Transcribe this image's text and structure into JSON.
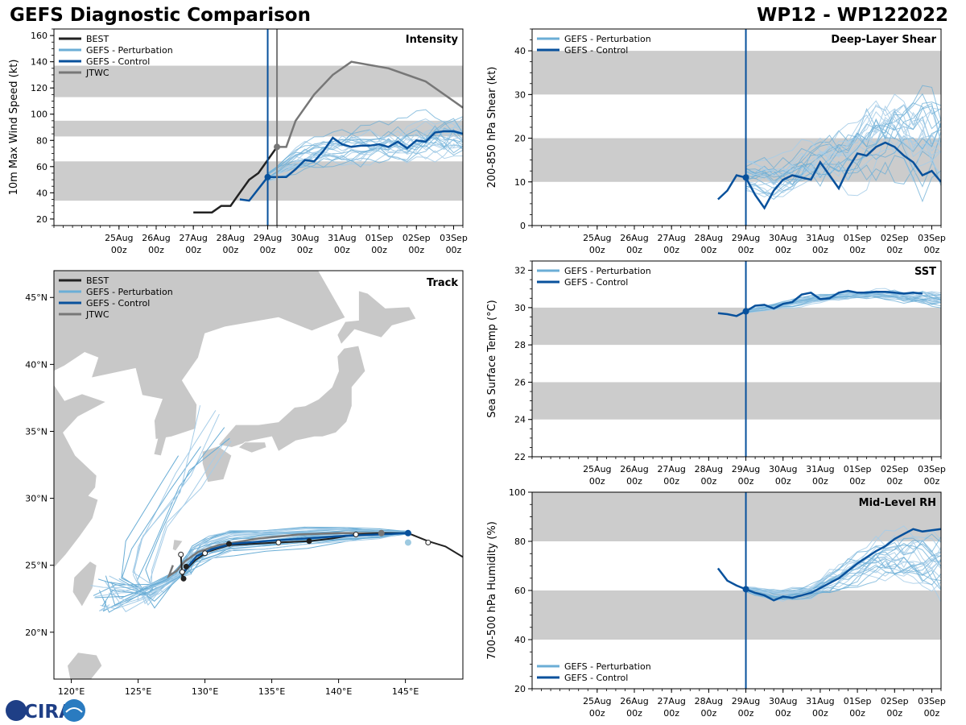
{
  "header": {
    "title": "GEFS Diagnostic Comparison",
    "storm": "WP12 - WP122022"
  },
  "colors": {
    "best": "#222222",
    "perturbation": "#6baed6",
    "control": "#08519c",
    "jtwc": "#777777",
    "band": "#cccccc",
    "land": "#c8c8c8",
    "init_line": "#08519c"
  },
  "legend_labels": {
    "best": "BEST",
    "perturbation": "GEFS - Perturbation",
    "control": "GEFS - Control",
    "jtwc": "JTWC"
  },
  "logo_text": "CIRA",
  "chart_data": [
    {
      "id": "intensity",
      "type": "line",
      "title": "Intensity",
      "ylabel": "10m Max Wind Speed (kt)",
      "ylim": [
        15,
        165
      ],
      "yticks": [
        20,
        40,
        60,
        80,
        100,
        120,
        140,
        160
      ],
      "xlim": [
        -1.75,
        9.25
      ],
      "xtick_labels": [
        [
          "25Aug",
          "00z"
        ],
        [
          "26Aug",
          "00z"
        ],
        [
          "27Aug",
          "00z"
        ],
        [
          "28Aug",
          "00z"
        ],
        [
          "29Aug",
          "00z"
        ],
        [
          "30Aug",
          "00z"
        ],
        [
          "31Aug",
          "00z"
        ],
        [
          "01Sep",
          "00z"
        ],
        [
          "02Sep",
          "00z"
        ],
        [
          "03Sep",
          "00z"
        ]
      ],
      "bands": [
        [
          34,
          64
        ],
        [
          83,
          95
        ],
        [
          113,
          137
        ]
      ],
      "init_time": 4.0,
      "jtwc_init": 4.25,
      "best": {
        "x": [
          2.0,
          2.25,
          2.5,
          2.75,
          3.0,
          3.25,
          3.5,
          3.75,
          4.0,
          4.25
        ],
        "y": [
          25,
          25,
          25,
          30,
          30,
          40,
          50,
          55,
          65,
          75
        ]
      },
      "jtwc": {
        "x": [
          4.25,
          4.5,
          4.75,
          5.25,
          5.75,
          6.25,
          7.25,
          8.25,
          9.0,
          9.25
        ],
        "y": [
          75,
          75,
          95,
          115,
          130,
          140,
          135,
          125,
          110,
          105
        ]
      },
      "control": {
        "x": [
          3.25,
          3.5,
          4.0,
          4.25,
          4.5,
          4.75,
          5.0,
          5.25,
          5.5,
          5.75,
          6.0,
          6.25,
          6.5,
          6.75,
          7.0,
          7.25,
          7.5,
          7.75,
          8.0,
          8.25,
          8.5,
          8.75,
          9.0,
          9.25
        ],
        "y": [
          35,
          34,
          52,
          52,
          52,
          58,
          65,
          64,
          72,
          82,
          77,
          75,
          76,
          76,
          77,
          75,
          79,
          74,
          80,
          79,
          86,
          87,
          87,
          85
        ]
      },
      "perturbation_count": 24,
      "perturbation_start": 4.0,
      "perturbation_end": 9.25,
      "perturbation_center": [
        52,
        66,
        72,
        76,
        78,
        80,
        82
      ],
      "perturbation_spread": [
        4,
        12,
        16,
        20,
        22,
        24,
        26
      ]
    },
    {
      "id": "shear",
      "type": "line",
      "title": "Deep-Layer Shear",
      "ylabel": "200-850 hPa Shear (kt)",
      "ylim": [
        0,
        45
      ],
      "yticks": [
        0,
        10,
        20,
        30,
        40
      ],
      "xlim": [
        -1.75,
        9.25
      ],
      "xtick_labels": [
        [
          "25Aug",
          "00z"
        ],
        [
          "26Aug",
          "00z"
        ],
        [
          "27Aug",
          "00z"
        ],
        [
          "28Aug",
          "00z"
        ],
        [
          "29Aug",
          "00z"
        ],
        [
          "30Aug",
          "00z"
        ],
        [
          "31Aug",
          "00z"
        ],
        [
          "01Sep",
          "00z"
        ],
        [
          "02Sep",
          "00z"
        ],
        [
          "03Sep",
          "00z"
        ]
      ],
      "bands": [
        [
          10,
          20
        ],
        [
          30,
          40
        ]
      ],
      "init_time": 4.0,
      "control": {
        "x": [
          3.25,
          3.5,
          3.75,
          4.0,
          4.25,
          4.5,
          4.75,
          5.0,
          5.25,
          5.5,
          5.75,
          6.0,
          6.25,
          6.5,
          6.75,
          7.0,
          7.25,
          7.5,
          7.75,
          8.0,
          8.25,
          8.5,
          8.75,
          9.0,
          9.25
        ],
        "y": [
          6,
          8,
          11.5,
          11,
          7,
          4,
          8,
          10.5,
          11.5,
          11,
          10.5,
          14.5,
          11.5,
          8.5,
          13,
          16.5,
          16,
          18,
          19,
          18,
          16,
          14.5,
          11.5,
          12.5,
          10
        ]
      },
      "perturbation_count": 24,
      "perturbation_start": 4.0,
      "perturbation_end": 9.25,
      "perturbation_center": [
        11,
        10,
        14,
        16,
        20,
        22,
        20
      ],
      "perturbation_spread": [
        4,
        6,
        8,
        10,
        14,
        18,
        20
      ]
    },
    {
      "id": "sst",
      "type": "line",
      "title": "SST",
      "ylabel": "Sea Surface Temp (°C)",
      "ylim": [
        22,
        32.5
      ],
      "yticks": [
        22,
        24,
        26,
        28,
        30,
        32
      ],
      "xlim": [
        -1.75,
        9.25
      ],
      "xtick_labels": [
        [
          "25Aug",
          "00z"
        ],
        [
          "26Aug",
          "00z"
        ],
        [
          "27Aug",
          "00z"
        ],
        [
          "28Aug",
          "00z"
        ],
        [
          "29Aug",
          "00z"
        ],
        [
          "30Aug",
          "00z"
        ],
        [
          "31Aug",
          "00z"
        ],
        [
          "01Sep",
          "00z"
        ],
        [
          "02Sep",
          "00z"
        ],
        [
          "03Sep",
          "00z"
        ]
      ],
      "bands": [
        [
          24,
          26
        ],
        [
          28,
          30
        ]
      ],
      "init_time": 4.0,
      "control": {
        "x": [
          3.25,
          3.5,
          3.75,
          4.0,
          4.25,
          4.5,
          4.75,
          5.0,
          5.25,
          5.5,
          5.75,
          6.0,
          6.25,
          6.5,
          6.75,
          7.0,
          7.25,
          7.5,
          7.75,
          8.0,
          8.25,
          8.5,
          8.75
        ],
        "y": [
          29.7,
          29.65,
          29.55,
          29.8,
          30.1,
          30.15,
          29.95,
          30.2,
          30.3,
          30.7,
          30.8,
          30.45,
          30.5,
          30.8,
          30.9,
          30.8,
          30.8,
          30.85,
          30.85,
          30.8,
          30.75,
          30.8,
          30.75
        ]
      },
      "perturbation_count": 24,
      "perturbation_start": 4.0,
      "perturbation_end": 9.25,
      "perturbation_center": [
        29.8,
        30.1,
        30.4,
        30.6,
        30.7,
        30.6,
        30.4
      ],
      "perturbation_spread": [
        0.1,
        0.2,
        0.3,
        0.3,
        0.4,
        0.5,
        0.6
      ]
    },
    {
      "id": "rh",
      "type": "line",
      "title": "Mid-Level RH",
      "ylabel": "700-500 hPa Humidity (%)",
      "ylim": [
        20,
        100
      ],
      "yticks": [
        20,
        40,
        60,
        80,
        100
      ],
      "xlim": [
        -1.75,
        9.25
      ],
      "xtick_labels": [
        [
          "25Aug",
          "00z"
        ],
        [
          "26Aug",
          "00z"
        ],
        [
          "27Aug",
          "00z"
        ],
        [
          "28Aug",
          "00z"
        ],
        [
          "29Aug",
          "00z"
        ],
        [
          "30Aug",
          "00z"
        ],
        [
          "31Aug",
          "00z"
        ],
        [
          "01Sep",
          "00z"
        ],
        [
          "02Sep",
          "00z"
        ],
        [
          "03Sep",
          "00z"
        ]
      ],
      "bands": [
        [
          40,
          60
        ],
        [
          80,
          100
        ]
      ],
      "init_time": 4.0,
      "control": {
        "x": [
          3.25,
          3.5,
          3.75,
          4.0,
          4.25,
          4.5,
          4.75,
          5.0,
          5.25,
          5.5,
          5.75,
          6.0,
          6.25,
          6.5,
          6.75,
          7.0,
          7.25,
          7.5,
          7.75,
          8.0,
          8.25,
          8.5,
          8.75,
          9.0,
          9.25
        ],
        "y": [
          69,
          64,
          62,
          60.5,
          59,
          58,
          56,
          57.5,
          57,
          58,
          59,
          61,
          63,
          65,
          68,
          71,
          73.5,
          76,
          78,
          81,
          83,
          85,
          84,
          84.5,
          85
        ]
      },
      "perturbation_count": 24,
      "perturbation_start": 4.0,
      "perturbation_end": 9.25,
      "perturbation_center": [
        60.5,
        58,
        60,
        66,
        72,
        72,
        70
      ],
      "perturbation_spread": [
        1,
        3,
        4,
        8,
        12,
        16,
        18
      ]
    },
    {
      "id": "track",
      "type": "scatter",
      "title": "Track",
      "xlim": [
        118.7,
        149.3
      ],
      "ylim": [
        16.5,
        47.0
      ],
      "xticks": [
        120,
        125,
        130,
        135,
        140,
        145
      ],
      "xtick_labels": [
        "120°E",
        "125°E",
        "130°E",
        "135°E",
        "140°E",
        "145°E"
      ],
      "yticks": [
        20,
        25,
        30,
        35,
        40,
        45
      ],
      "ytick_labels": [
        "20°N",
        "25°N",
        "30°N",
        "35°N",
        "40°N",
        "45°N"
      ],
      "best": {
        "lon": [
          149.5,
          148,
          146.7,
          145.2,
          143.2,
          141.3,
          139.5,
          137.8,
          135.5,
          133.5,
          131.8,
          130.2,
          129.3,
          128.7,
          128.4,
          128.3,
          128.2
        ],
        "lat": [
          25.5,
          26.4,
          26.8,
          27.4,
          27.4,
          27.3,
          27.0,
          26.8,
          26.7,
          26.6,
          26.5,
          26.0,
          25.4,
          24.8,
          24.4,
          24.1,
          25.8
        ]
      },
      "best_markers": {
        "lon": [
          146.7,
          143.2,
          141.3,
          137.8,
          135.5,
          131.8,
          130.0,
          128.6,
          128.3,
          128.4,
          128.2
        ],
        "lat": [
          26.7,
          27.4,
          27.3,
          26.8,
          26.7,
          26.6,
          25.9,
          24.9,
          24.5,
          24.0,
          25.8
        ]
      },
      "control": {
        "lon": [
          145.2,
          143,
          140.5,
          137.5,
          134.5,
          132,
          130.5,
          129.4,
          128.8,
          128.5,
          128.3
        ],
        "lat": [
          27.4,
          27.3,
          27.2,
          27.0,
          26.8,
          26.6,
          26.2,
          25.7,
          25.0,
          24.6,
          24.4
        ]
      },
      "jtwc": {
        "lon": [
          143.2,
          140,
          137,
          134,
          131,
          129.5,
          128.5,
          127.9,
          127.3,
          127.6
        ],
        "lat": [
          27.4,
          27.4,
          27.3,
          27.0,
          26.5,
          26.0,
          25.3,
          24.6,
          24.2,
          25.0
        ]
      },
      "jtwc_marker": {
        "lon": 143.2,
        "lat": 27.4
      },
      "perturbation_count": 28
    }
  ]
}
